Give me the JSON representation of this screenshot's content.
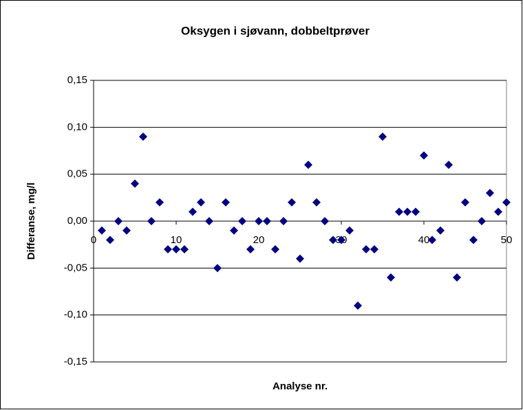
{
  "chart_data": {
    "type": "scatter",
    "title": "Oksygen i sjøvann, dobbeltprøver",
    "x_label": "Analyse nr.",
    "y_label": "Differanse, mg/l",
    "series": [
      {
        "name": "Differanse",
        "color": "#000080",
        "x": [
          1,
          2,
          3,
          4,
          5,
          6,
          7,
          8,
          9,
          10,
          11,
          12,
          13,
          14,
          15,
          16,
          17,
          18,
          19,
          20,
          21,
          22,
          23,
          24,
          25,
          26,
          27,
          28,
          29,
          30,
          31,
          32,
          33,
          34,
          35,
          36,
          37,
          38,
          39,
          40,
          41,
          42,
          43,
          44,
          45,
          46,
          47,
          48,
          49,
          50
        ],
        "values": [
          -0.01,
          -0.02,
          0,
          -0.01,
          0.04,
          0.09,
          0,
          0.02,
          -0.03,
          -0.03,
          -0.03,
          0.01,
          0.02,
          0,
          -0.05,
          0.02,
          -0.01,
          0,
          -0.03,
          0,
          0,
          -0.03,
          0,
          0.02,
          -0.04,
          0.06,
          0.02,
          0,
          -0.02,
          -0.02,
          -0.01,
          -0.09,
          -0.03,
          -0.03,
          0.09,
          -0.06,
          0.01,
          0.01,
          0.01,
          0.07,
          -0.02,
          -0.01,
          0.06,
          -0.06,
          0.02,
          -0.02,
          0,
          0.03,
          0.01,
          0.02
        ]
      }
    ],
    "xlim": [
      0,
      50
    ],
    "xticks": [
      0,
      10,
      20,
      30,
      40,
      50
    ],
    "ylim": [
      -0.15,
      0.15
    ],
    "yticks": [
      {
        "value": -0.15,
        "label": "-0,15"
      },
      {
        "value": -0.1,
        "label": "-0,10"
      },
      {
        "value": -0.05,
        "label": "-0,05"
      },
      {
        "value": 0,
        "label": "0,00"
      },
      {
        "value": 0.05,
        "label": "0,05"
      },
      {
        "value": 0.1,
        "label": "0,10"
      },
      {
        "value": 0.15,
        "label": "0,15"
      }
    ],
    "grid": true
  }
}
